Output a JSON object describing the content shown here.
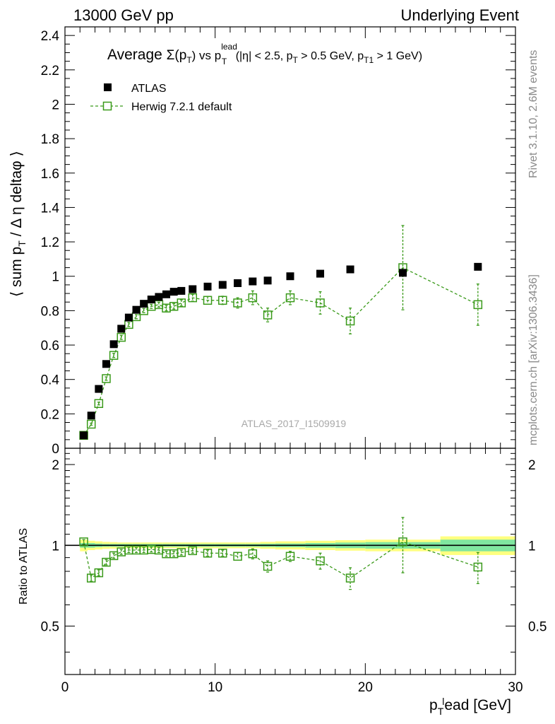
{
  "header": {
    "left": "13000 GeV pp",
    "right": "Underlying Event"
  },
  "side_labels": {
    "rivet": "Rivet 3.1.10,  2.6M events",
    "mcplots": "mcplots.cern.ch [arXiv:1306.3436]"
  },
  "watermark": "ATLAS_2017_I1509919",
  "chart_data": [
    {
      "type": "scatter",
      "title": "Average Σ(pT) vs pTlead (|η| < 2.5, pT > 0.5 GeV, pT1 > 1 GeV)",
      "title_parts": {
        "t1": "Average ",
        "t2": "Σ(p",
        "t3": "T",
        "t4": ") vs p",
        "t5": "lead",
        "t6": "T",
        "t7": " (|η| < 2.5, p",
        "t8": "T",
        "t9": " > 0.5 GeV, p",
        "t10": "T1",
        "t11": " > 1 GeV)"
      },
      "ylabel": "⟨ sum pT / Δ η deltaφ ⟩",
      "ylabel_parts": {
        "a": "⟨ sum p",
        "b": "T",
        "c": " / Δ η deltaφ ⟩"
      },
      "xlim": [
        0,
        30
      ],
      "ylim": [
        0,
        2.45
      ],
      "y_ticks": [
        "0",
        "0.2",
        "0.4",
        "0.6",
        "0.8",
        "1",
        "1.2",
        "1.4",
        "1.6",
        "1.8",
        "2",
        "2.2",
        "2.4"
      ],
      "legend_position": "top-left",
      "grid": false,
      "x": [
        1.25,
        1.75,
        2.25,
        2.75,
        3.25,
        3.75,
        4.25,
        4.75,
        5.25,
        5.75,
        6.25,
        6.75,
        7.25,
        7.75,
        8.5,
        9.5,
        10.5,
        11.5,
        12.5,
        13.5,
        15.0,
        17.0,
        19.0,
        22.5,
        27.5
      ],
      "series": [
        {
          "name": "ATLAS",
          "color": "#000000",
          "marker": "filled-square",
          "y": [
            0.075,
            0.19,
            0.345,
            0.49,
            0.605,
            0.695,
            0.76,
            0.805,
            0.84,
            0.865,
            0.88,
            0.895,
            0.91,
            0.915,
            0.925,
            0.94,
            0.95,
            0.96,
            0.97,
            0.975,
            1.0,
            1.015,
            1.04,
            1.02,
            1.055
          ]
        },
        {
          "name": "Herwig 7.2.1 default",
          "color": "#3a9a1a",
          "marker": "open-square",
          "line": "dashed",
          "y": [
            0.075,
            0.14,
            0.26,
            0.405,
            0.54,
            0.645,
            0.72,
            0.765,
            0.8,
            0.825,
            0.835,
            0.815,
            0.825,
            0.845,
            0.875,
            0.86,
            0.86,
            0.845,
            0.875,
            0.775,
            0.875,
            0.845,
            0.74,
            1.05,
            0.835
          ],
          "yerr": [
            0.005,
            0.006,
            0.008,
            0.01,
            0.012,
            0.012,
            0.012,
            0.012,
            0.012,
            0.012,
            0.014,
            0.016,
            0.016,
            0.018,
            0.02,
            0.022,
            0.024,
            0.03,
            0.04,
            0.04,
            0.04,
            0.065,
            0.075,
            0.245,
            0.12
          ]
        }
      ]
    },
    {
      "type": "scatter",
      "ylabel": "Ratio to ATLAS",
      "xlabel": "pTlead [GeV]",
      "xlabel_parts": {
        "a": "p",
        "b": "T",
        "c": "l",
        "d": "ead [GeV]"
      },
      "xlim": [
        0,
        30
      ],
      "ylim": [
        0.33,
        2.3
      ],
      "x_ticks": [
        "0",
        "10",
        "20",
        "30"
      ],
      "y_ticks": [
        "0.5",
        "1",
        "2"
      ],
      "reference_line": 1,
      "band_colors": {
        "stat": "#80e6a0",
        "total": "#ffff80"
      },
      "band_halfwidths": {
        "x_edges": [
          1.0,
          1.5,
          2.0,
          2.5,
          3.0,
          3.5,
          4.0,
          4.5,
          5.0,
          5.5,
          6.0,
          6.5,
          7.0,
          7.5,
          8.0,
          9.0,
          10.0,
          11.0,
          12.0,
          13.0,
          14.0,
          16.0,
          18.0,
          20.0,
          25.0,
          30.0
        ],
        "stat": [
          0.02,
          0.02,
          0.015,
          0.012,
          0.012,
          0.012,
          0.012,
          0.012,
          0.012,
          0.012,
          0.012,
          0.012,
          0.012,
          0.012,
          0.012,
          0.012,
          0.012,
          0.012,
          0.012,
          0.014,
          0.016,
          0.02,
          0.024,
          0.028,
          0.05
        ],
        "total": [
          0.05,
          0.04,
          0.035,
          0.03,
          0.028,
          0.025,
          0.025,
          0.025,
          0.025,
          0.025,
          0.025,
          0.025,
          0.025,
          0.025,
          0.025,
          0.025,
          0.025,
          0.025,
          0.025,
          0.03,
          0.035,
          0.04,
          0.045,
          0.05,
          0.08
        ]
      },
      "series": [
        {
          "name": "Herwig 7.2.1 default",
          "color": "#3a9a1a",
          "y": [
            1.03,
            0.755,
            0.79,
            0.865,
            0.915,
            0.945,
            0.96,
            0.96,
            0.96,
            0.965,
            0.96,
            0.93,
            0.93,
            0.94,
            0.955,
            0.935,
            0.935,
            0.91,
            0.93,
            0.835,
            0.91,
            0.875,
            0.755,
            1.03,
            0.83
          ],
          "yerr": [
            0.02,
            0.02,
            0.02,
            0.02,
            0.02,
            0.02,
            0.02,
            0.02,
            0.02,
            0.02,
            0.02,
            0.02,
            0.02,
            0.02,
            0.02,
            0.025,
            0.025,
            0.03,
            0.04,
            0.04,
            0.04,
            0.06,
            0.07,
            0.24,
            0.11
          ]
        }
      ]
    }
  ]
}
